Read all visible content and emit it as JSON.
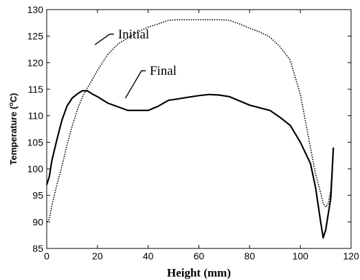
{
  "chart_data": {
    "type": "line",
    "title": "",
    "xlabel": "Height (mm)",
    "ylabel": {
      "prefix": "Temperature (",
      "sup": "o",
      "suffix": "C)"
    },
    "xlim": [
      0,
      120
    ],
    "ylim": [
      85,
      130
    ],
    "xticks": [
      0,
      20,
      40,
      60,
      80,
      100,
      120
    ],
    "yticks": [
      85,
      90,
      95,
      100,
      105,
      110,
      115,
      120,
      125,
      130
    ],
    "grid": false,
    "legend": "none",
    "series": [
      {
        "name": "Initial",
        "style": "dotted",
        "color": "#000000",
        "x": [
          0,
          1,
          2,
          4,
          6,
          8,
          10,
          12,
          14,
          16,
          20,
          24,
          28,
          32,
          36,
          40,
          44,
          48,
          52,
          56,
          60,
          64,
          68,
          72,
          76,
          80,
          84,
          88,
          92,
          96,
          100,
          104,
          106,
          108,
          109,
          110,
          111,
          112,
          113
        ],
        "y": [
          90,
          90.5,
          93,
          97,
          100.5,
          104.5,
          108,
          111,
          113.5,
          115.2,
          118.5,
          121.5,
          123.5,
          124.7,
          125.8,
          126.7,
          127.3,
          128,
          128.1,
          128.1,
          128.1,
          128.1,
          128.1,
          128,
          127.3,
          126.5,
          125.8,
          124.8,
          123,
          120.5,
          114,
          104,
          99,
          95.5,
          93.5,
          92.8,
          93.5,
          96,
          104
        ]
      },
      {
        "name": "Final",
        "style": "solid",
        "color": "#000000",
        "x": [
          0,
          1,
          2,
          4,
          6,
          8,
          10,
          12,
          14,
          16,
          18,
          20,
          24,
          28,
          32,
          36,
          40,
          44,
          48,
          52,
          56,
          60,
          64,
          68,
          72,
          76,
          80,
          84,
          88,
          92,
          96,
          100,
          104,
          106,
          108,
          109,
          110,
          111,
          112,
          113
        ],
        "y": [
          97,
          98.5,
          101.5,
          105.5,
          109.2,
          111.8,
          113.3,
          114.1,
          114.7,
          114.7,
          114.1,
          113.6,
          112.4,
          111.7,
          111,
          111,
          111,
          111.8,
          112.9,
          113.2,
          113.5,
          113.8,
          114,
          113.9,
          113.6,
          112.8,
          112,
          111.5,
          111,
          109.7,
          108.2,
          105,
          101,
          96.5,
          90,
          87,
          88.5,
          91.5,
          94.5,
          104
        ]
      }
    ],
    "annotations": [
      {
        "text": "Initial",
        "x": 26.5,
        "y": 124.6,
        "arrow_to": [
          19,
          123.4
        ]
      },
      {
        "text": "Final",
        "x": 39,
        "y": 117.7,
        "arrow_to": [
          31,
          113.3
        ]
      }
    ]
  }
}
